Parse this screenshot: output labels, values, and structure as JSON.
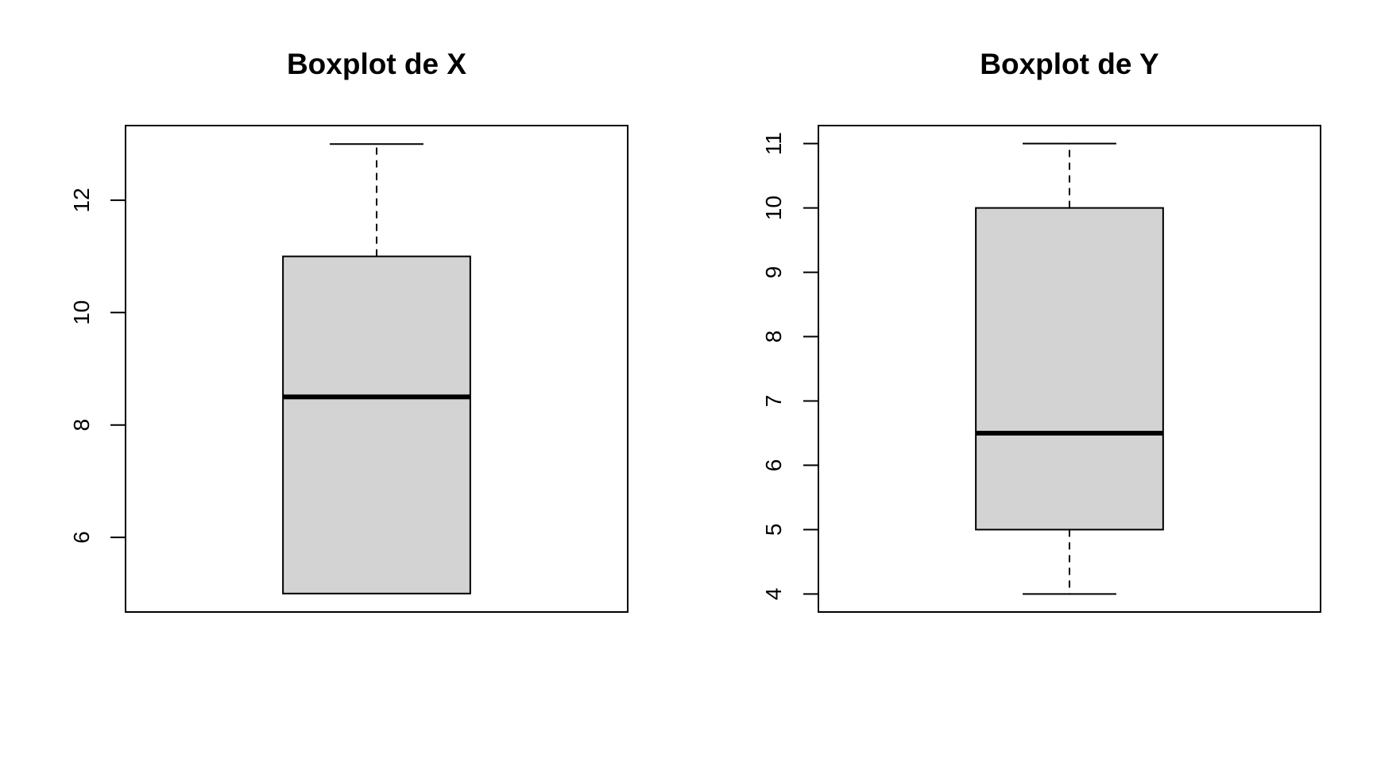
{
  "chart_data": [
    {
      "type": "boxplot",
      "title": "Boxplot de X",
      "xlabel": "",
      "ylabel": "",
      "ylim": [
        4.672,
        13.328
      ],
      "yticks": [
        6,
        8,
        10,
        12
      ],
      "box": {
        "min": 5,
        "q1": 5,
        "median": 8.5,
        "q3": 11,
        "max": 13
      },
      "box_color": "#d3d3d3"
    },
    {
      "type": "boxplot",
      "title": "Boxplot de Y",
      "xlabel": "",
      "ylabel": "",
      "ylim": [
        3.72,
        11.28
      ],
      "yticks": [
        4,
        5,
        6,
        7,
        8,
        9,
        10,
        11
      ],
      "box": {
        "min": 4,
        "q1": 5,
        "median": 6.5,
        "q3": 10,
        "max": 11
      },
      "box_color": "#d3d3d3"
    }
  ]
}
